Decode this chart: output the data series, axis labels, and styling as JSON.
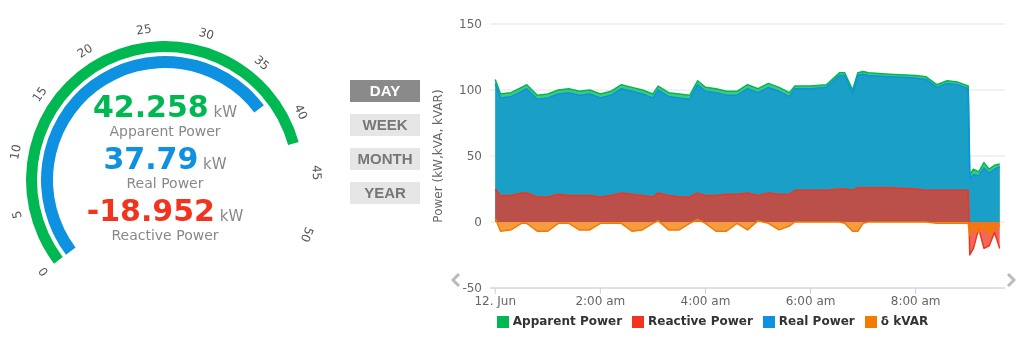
{
  "chart_data": [
    {
      "type": "other",
      "ylabel": "kW",
      "data_labels": true,
      "categories": [
        "Apparent Power",
        "Real Power",
        "Reactive Power"
      ],
      "values": [
        42.258,
        37.79,
        -18.952
      ],
      "colors": [
        "#00b852",
        "#0d91e0",
        "#f2341f"
      ],
      "annotations": [
        "0",
        "5",
        "10",
        "15",
        "20",
        "25",
        "30",
        "35",
        "40",
        "45",
        "50"
      ]
    },
    {
      "type": "other",
      "annotations": [
        "DAY",
        "WEEK",
        "MONTH",
        "YEAR"
      ]
    },
    {
      "type": "area",
      "ylabel": "Power (kW,kVA, kVAR)",
      "xlim": [
        -0.1,
        9.7
      ],
      "xticks": [
        {
          "value": 0,
          "label": "12. Jun"
        },
        {
          "value": 2,
          "label": "2:00 am"
        },
        {
          "value": 4,
          "label": "4:00 am"
        },
        {
          "value": 6,
          "label": "6:00 am"
        },
        {
          "value": 8,
          "label": "8:00 am"
        }
      ],
      "ylim": [
        -50,
        150
      ],
      "yticks": [
        -50,
        0,
        50,
        100,
        150
      ],
      "grid": "y",
      "legend": "bottom",
      "x": [
        0,
        0.1,
        0.3,
        0.5,
        0.6,
        0.8,
        1.0,
        1.2,
        1.4,
        1.6,
        1.8,
        2.0,
        2.2,
        2.4,
        2.6,
        2.8,
        3.0,
        3.1,
        3.3,
        3.5,
        3.7,
        3.85,
        4.0,
        4.2,
        4.4,
        4.6,
        4.8,
        5.0,
        5.2,
        5.4,
        5.6,
        5.7,
        6.0,
        6.3,
        6.55,
        6.65,
        6.8,
        6.9,
        7.0,
        7.1,
        7.5,
        8.0,
        8.2,
        8.4,
        8.6,
        8.8,
        9.0,
        9.03,
        9.1,
        9.2,
        9.3,
        9.4,
        9.5,
        9.6
      ],
      "series": [
        {
          "name": "Apparent Power",
          "color": "#00b852",
          "values": [
            108,
            97,
            98,
            102,
            104,
            96,
            97,
            100,
            101,
            99,
            100,
            97,
            99,
            104,
            102,
            100,
            97,
            103,
            98,
            97,
            96,
            107,
            102,
            101,
            99,
            99,
            104,
            101,
            105,
            102,
            98,
            103,
            103,
            104,
            113,
            113,
            100,
            113,
            114,
            113,
            112,
            111,
            110,
            104,
            107,
            106,
            103,
            36,
            40,
            38,
            45,
            40,
            43,
            44
          ]
        },
        {
          "name": "Real Power",
          "color": "#0d91e0",
          "values": [
            105,
            94,
            95,
            99,
            101,
            93,
            94,
            97,
            98,
            96,
            97,
            94,
            96,
            101,
            99,
            97,
            94,
            100,
            95,
            94,
            93,
            104,
            99,
            98,
            96,
            96,
            101,
            98,
            102,
            99,
            95,
            101,
            101,
            102,
            111,
            111,
            97,
            111,
            112,
            111,
            110,
            109,
            108,
            102,
            105,
            104,
            101,
            33,
            36,
            35,
            41,
            37,
            40,
            42
          ]
        },
        {
          "name": "Reactive Power",
          "color": "#f2341f",
          "values": [
            25,
            20,
            20,
            22,
            22,
            19,
            19,
            21,
            20,
            20,
            20,
            19,
            20,
            22,
            21,
            20,
            19,
            22,
            20,
            19,
            19,
            22,
            20,
            20,
            21,
            21,
            22,
            20,
            22,
            21,
            21,
            24,
            24,
            24,
            25,
            25,
            24,
            26,
            26,
            26,
            26,
            25,
            24,
            24,
            24,
            24,
            24,
            -25,
            -20,
            -5,
            -20,
            -18,
            -8,
            -20
          ]
        },
        {
          "name": "δ kVAR",
          "color": "#f27b00",
          "values": [
            3,
            -7,
            -6,
            -1,
            -1,
            -7,
            -7,
            -1,
            -1,
            -6,
            -6,
            -1,
            -1,
            -1,
            -7,
            -6,
            -1,
            1,
            -6,
            -6,
            -1,
            2,
            -1,
            -7,
            -7,
            -1,
            -6,
            1,
            -1,
            -6,
            -3,
            0,
            0,
            0,
            0,
            -1,
            -7,
            -7,
            -1,
            0,
            0,
            0,
            0,
            -1,
            -1,
            -1,
            -1,
            -10,
            -5,
            -8,
            -3,
            -10,
            -5,
            -3
          ]
        }
      ]
    }
  ]
}
